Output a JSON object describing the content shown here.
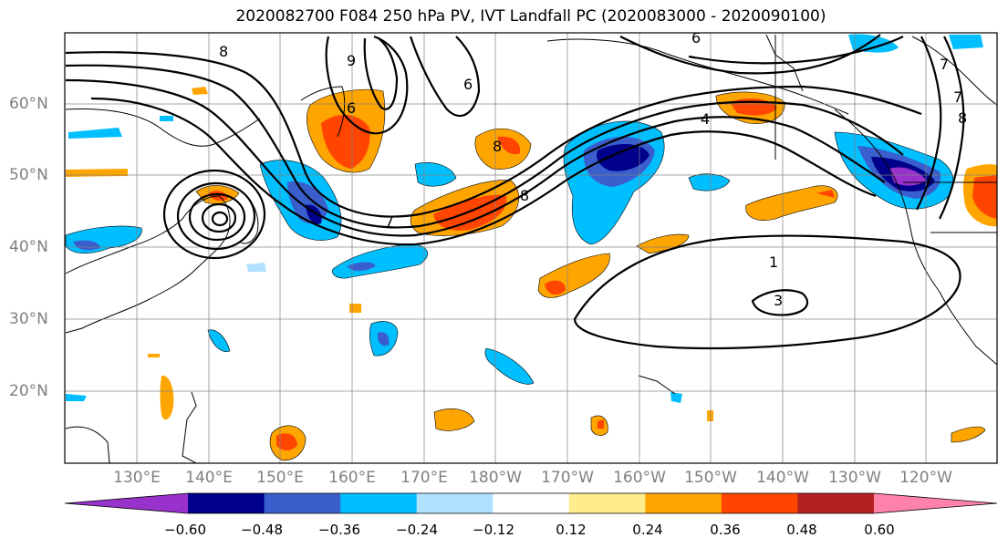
{
  "title": "2020082700 F084 250 hPa PV, IVT Landfall PC (2020083000 - 2020090100)",
  "lat_labels": [
    "60°N",
    "50°N",
    "40°N",
    "30°N",
    "20°N"
  ],
  "lon_labels": [
    "130°E",
    "140°E",
    "150°E",
    "160°E",
    "170°E",
    "180°W",
    "170°W",
    "160°W",
    "150°W",
    "140°W",
    "130°W",
    "120°W"
  ],
  "colorbar": {
    "tick_labels": [
      "−0.60",
      "−0.48",
      "−0.36",
      "−0.24",
      "−0.12",
      "0.12",
      "0.24",
      "0.36",
      "0.48",
      "0.60"
    ],
    "colors": [
      "#9932cc",
      "#00008b",
      "#3a5fcd",
      "#00bfff",
      "#b0e2ff",
      "#ffffff",
      "#ffec8b",
      "#ffa500",
      "#ff4500",
      "#b22222",
      "#ff82ab"
    ]
  },
  "contour_labels": [
    "6",
    "7",
    "8",
    "9",
    "6",
    "8",
    "8",
    "7",
    "4",
    "6",
    "7",
    "8",
    "1",
    "3"
  ]
}
